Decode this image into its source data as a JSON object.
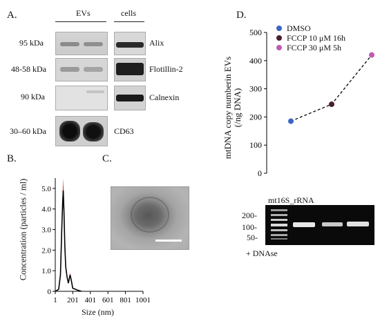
{
  "panels": {
    "a": "A.",
    "b": "B.",
    "c": "C.",
    "d": "D."
  },
  "western": {
    "group_evs": "EVs",
    "group_cells": "cells",
    "rows": [
      {
        "mw": "95 kDa",
        "protein": "Alix"
      },
      {
        "mw": "48-58 kDa",
        "protein": "Flotillin-2"
      },
      {
        "mw": "90 kDa",
        "protein": "Calnexin"
      },
      {
        "mw": "30–60 kDa",
        "protein": "CD63"
      }
    ]
  },
  "nta_chart": {
    "ylabel": "Concentration (particles / ml)",
    "xlabel": "Size (nm)",
    "y_ticks": [
      "0",
      "1.0",
      "2.0",
      "3.0",
      "4.0",
      "5.0"
    ],
    "x_ticks": [
      "1",
      "201",
      "401",
      "601",
      "801",
      "1001"
    ]
  },
  "gel": {
    "title": "mt16S_rRNA",
    "markers": [
      "200-",
      "100-",
      "50-"
    ],
    "footer": "+ DNAse"
  },
  "chart_data": {
    "type": "line",
    "ylabel": "mtDNA copy numberin EVs (/ng DNA)",
    "ylim": [
      0,
      500
    ],
    "y_ticks": [
      0,
      100,
      200,
      300,
      400,
      500
    ],
    "legend_position": "top-left",
    "series": [
      {
        "name": "DMSO",
        "value": 185,
        "color": "#3a66c4"
      },
      {
        "name": "FCCP 10 μM 16h",
        "value": 245,
        "color": "#4a1e2e"
      },
      {
        "name": "FCCP 30 μM 5h",
        "value": 420,
        "color": "#c25ab5"
      }
    ]
  }
}
